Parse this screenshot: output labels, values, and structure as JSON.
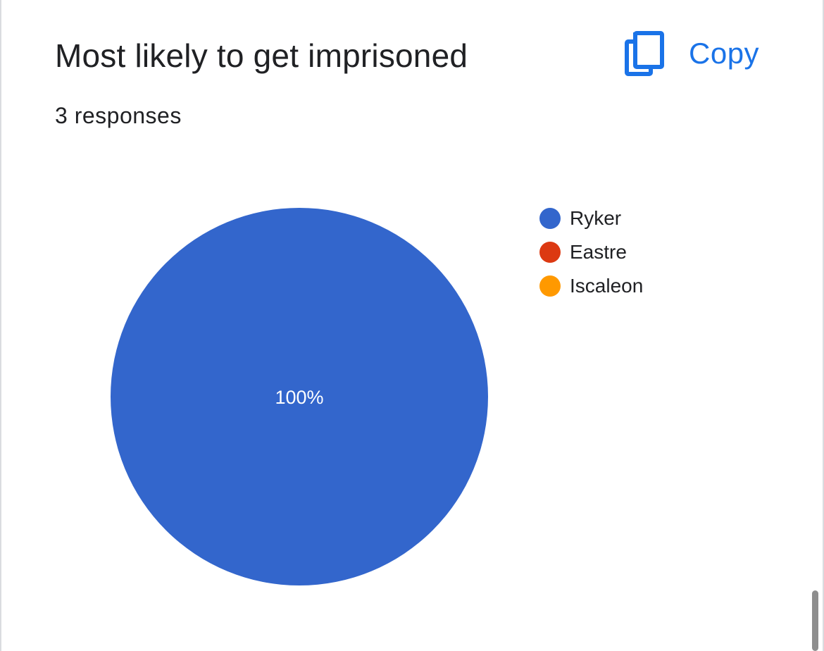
{
  "card": {
    "title": "Most likely to get imprisoned",
    "copy_label": "Copy",
    "copy_icon": "copy-icon",
    "responses_text": "3 responses"
  },
  "colors": {
    "accent": "#1a73e8",
    "ryker": "#3366cc",
    "eastre": "#dc3912",
    "iscaleon": "#ff9900"
  },
  "chart_data": {
    "type": "pie",
    "slices": [
      {
        "name": "Ryker",
        "value": 3,
        "percent_label": "100%",
        "color": "#3366cc"
      },
      {
        "name": "Eastre",
        "value": 0,
        "percent_label": "",
        "color": "#dc3912"
      },
      {
        "name": "Iscaleon",
        "value": 0,
        "percent_label": "",
        "color": "#ff9900"
      }
    ],
    "legend_position": "right"
  }
}
